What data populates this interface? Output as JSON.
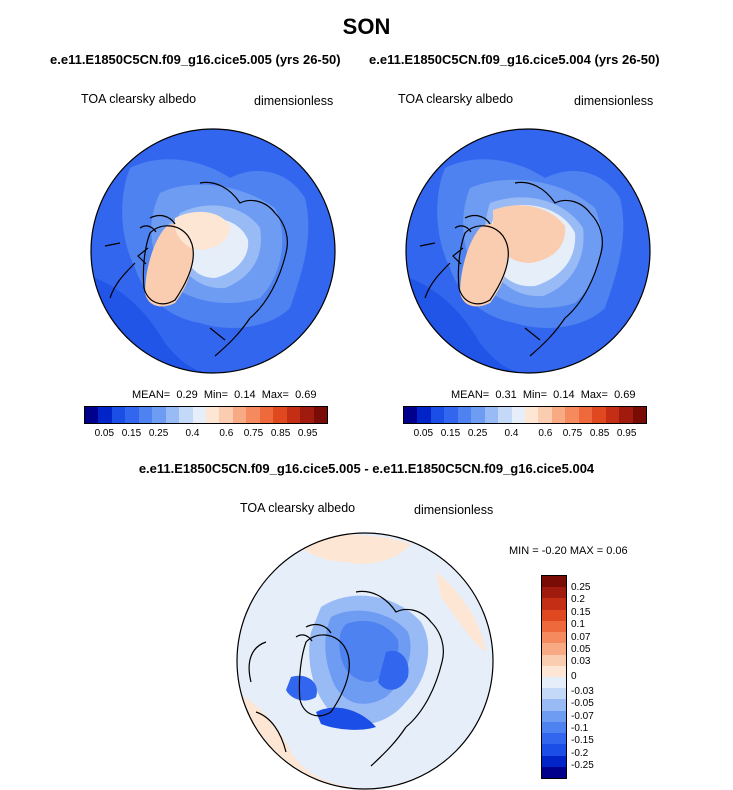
{
  "title": "SON",
  "panels": [
    {
      "subtitle": "e.e11.E1850C5CN.f09_g16.cice5.005 (yrs 26-50)",
      "left_label": "TOA clearsky albedo",
      "right_label": "dimensionless",
      "mean_label": "MEAN=",
      "mean": "0.29",
      "min_label": "Min=",
      "min": "0.14",
      "max_label": "Max=",
      "max": "0.69"
    },
    {
      "subtitle": "e.e11.E1850C5CN.f09_g16.cice5.004 (yrs 26-50)",
      "left_label": "TOA clearsky albedo",
      "right_label": "dimensionless",
      "mean_label": "MEAN=",
      "mean": "0.31",
      "min_label": "Min=",
      "min": "0.14",
      "max_label": "Max=",
      "max": "0.69"
    }
  ],
  "colorbar": {
    "colors": [
      "#00008c",
      "#0024c8",
      "#1a4ee6",
      "#3366ee",
      "#4e82f0",
      "#6e9cf2",
      "#99bbf5",
      "#c4d8f7",
      "#e6eefa",
      "#fde6d4",
      "#fbcdb0",
      "#f7aa84",
      "#f48a5e",
      "#ee6a3c",
      "#e04820",
      "#c42e14",
      "#a01a0e",
      "#7a0c06"
    ],
    "ticks": [
      "0.05",
      "0.15",
      "0.25",
      "0.4",
      "0.6",
      "0.75",
      "0.85",
      "0.95"
    ]
  },
  "diff": {
    "title": "e.e11.E1850C5CN.f09_g16.cice5.005 - e.e11.E1850C5CN.f09_g16.cice5.004",
    "left_label": "TOA clearsky albedo",
    "right_label": "dimensionless",
    "stats": "MIN =  -0.20 MAX =   0.06",
    "colorbar_colors": [
      "#7a0c06",
      "#a01a0e",
      "#c42e14",
      "#e04820",
      "#ee6a3c",
      "#f48a5e",
      "#f7aa84",
      "#fbcdb0",
      "#fde6d4",
      "#e6eefa",
      "#c4d8f7",
      "#99bbf5",
      "#6e9cf2",
      "#4e82f0",
      "#3366ee",
      "#1a4ee6",
      "#0024c8",
      "#00008c"
    ],
    "ticks": [
      "0.25",
      "0.2",
      "0.15",
      "0.1",
      "0.07",
      "0.05",
      "0.03",
      "0",
      "-0.03",
      "-0.05",
      "-0.07",
      "-0.1",
      "-0.15",
      "-0.2",
      "-0.25"
    ]
  }
}
